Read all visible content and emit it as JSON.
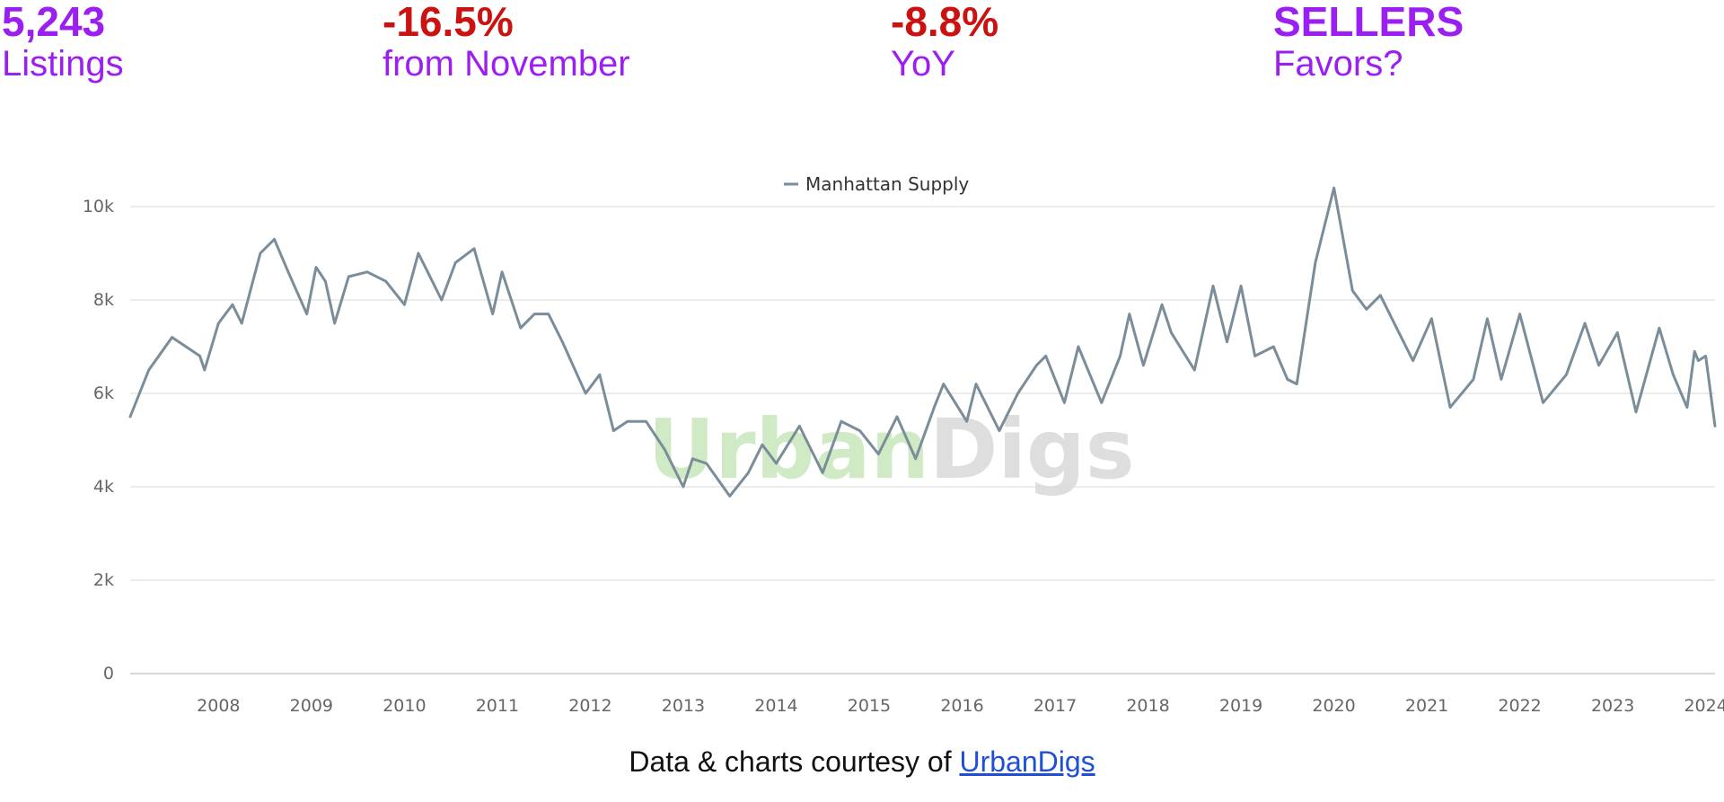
{
  "stats": [
    {
      "value": "5,243",
      "label": "Listings",
      "value_color": "#9b1ff0",
      "label_color": "#9b1ff0"
    },
    {
      "value": "-16.5%",
      "label": "from November",
      "value_color": "#cc1111",
      "label_color": "#9b1ff0"
    },
    {
      "value": "-8.8%",
      "label": "YoY",
      "value_color": "#cc1111",
      "label_color": "#9b1ff0"
    },
    {
      "value": "SELLERS",
      "label": "Favors?",
      "value_color": "#9b1ff0",
      "label_color": "#9b1ff0"
    }
  ],
  "chart_data": {
    "type": "line",
    "title": "",
    "xlabel": "",
    "ylabel": "",
    "watermark": "UrbanDigs",
    "legend": {
      "position": "top-center",
      "entries": [
        "Manhattan Supply"
      ]
    },
    "grid": true,
    "xlim": [
      2007.55,
      2024.6
    ],
    "ylim": [
      0,
      10000
    ],
    "x_ticks": [
      2008,
      2009,
      2010,
      2011,
      2012,
      2013,
      2014,
      2015,
      2016,
      2017,
      2018,
      2019,
      2020,
      2021,
      2022,
      2023,
      2024
    ],
    "y_ticks": [
      {
        "value": 0,
        "label": "0"
      },
      {
        "value": 2000,
        "label": "2k"
      },
      {
        "value": 4000,
        "label": "4k"
      },
      {
        "value": 6000,
        "label": "6k"
      },
      {
        "value": 8000,
        "label": "8k"
      },
      {
        "value": 10000,
        "label": "10k"
      }
    ],
    "series": [
      {
        "name": "Manhattan Supply",
        "color": "#7b8d99",
        "x": [
          2007.55,
          2007.75,
          2008.0,
          2008.15,
          2008.3,
          2008.35,
          2008.5,
          2008.65,
          2008.75,
          2008.95,
          2009.1,
          2009.25,
          2009.45,
          2009.55,
          2009.65,
          2009.75,
          2009.9,
          2010.1,
          2010.3,
          2010.5,
          2010.65,
          2010.75,
          2010.9,
          2011.05,
          2011.25,
          2011.45,
          2011.55,
          2011.75,
          2011.9,
          2012.05,
          2012.2,
          2012.45,
          2012.6,
          2012.75,
          2012.9,
          2013.1,
          2013.3,
          2013.5,
          2013.6,
          2013.75,
          2014.0,
          2014.2,
          2014.35,
          2014.5,
          2014.75,
          2015.0,
          2015.2,
          2015.4,
          2015.6,
          2015.8,
          2016.0,
          2016.2,
          2016.3,
          2016.55,
          2016.65,
          2016.9,
          2017.1,
          2017.3,
          2017.4,
          2017.6,
          2017.75,
          2018.0,
          2018.2,
          2018.3,
          2018.45,
          2018.65,
          2018.75,
          2019.0,
          2019.2,
          2019.35,
          2019.5,
          2019.65,
          2019.85,
          2020.0,
          2020.1,
          2020.3,
          2020.5,
          2020.7,
          2020.85,
          2021.0,
          2021.2,
          2021.35,
          2021.55,
          2021.75,
          2022.0,
          2022.15,
          2022.3,
          2022.5,
          2022.75,
          2023.0,
          2023.2,
          2023.35,
          2023.55,
          2023.75,
          2024.0,
          2024.15,
          2024.3,
          2024.38,
          2024.42,
          2024.5,
          2024.6
        ],
        "y": [
          5500,
          6500,
          7200,
          7000,
          6800,
          6500,
          7500,
          7900,
          7500,
          9000,
          9300,
          8600,
          7700,
          8700,
          8400,
          7500,
          8500,
          8600,
          8400,
          7900,
          9000,
          8600,
          8000,
          8800,
          9100,
          7700,
          8600,
          7400,
          7700,
          7700,
          7100,
          6000,
          6400,
          5200,
          5400,
          5400,
          4800,
          4000,
          4600,
          4500,
          3800,
          4300,
          4900,
          4500,
          5300,
          4300,
          5400,
          5200,
          4700,
          5500,
          4600,
          5700,
          6200,
          5400,
          6200,
          5200,
          6000,
          6600,
          6800,
          5800,
          7000,
          5800,
          6800,
          7700,
          6600,
          7900,
          7300,
          6500,
          8300,
          7100,
          8300,
          6800,
          7000,
          6300,
          6200,
          8800,
          10400,
          8200,
          7800,
          8100,
          7300,
          6700,
          7600,
          5700,
          6300,
          7600,
          6300,
          7700,
          5800,
          6400,
          7500,
          6600,
          7300,
          5600,
          7400,
          6400,
          5700,
          6900,
          6700,
          6800,
          5300
        ]
      }
    ]
  },
  "footer": {
    "text": "Data & charts courtesy of ",
    "link": "UrbanDigs"
  }
}
